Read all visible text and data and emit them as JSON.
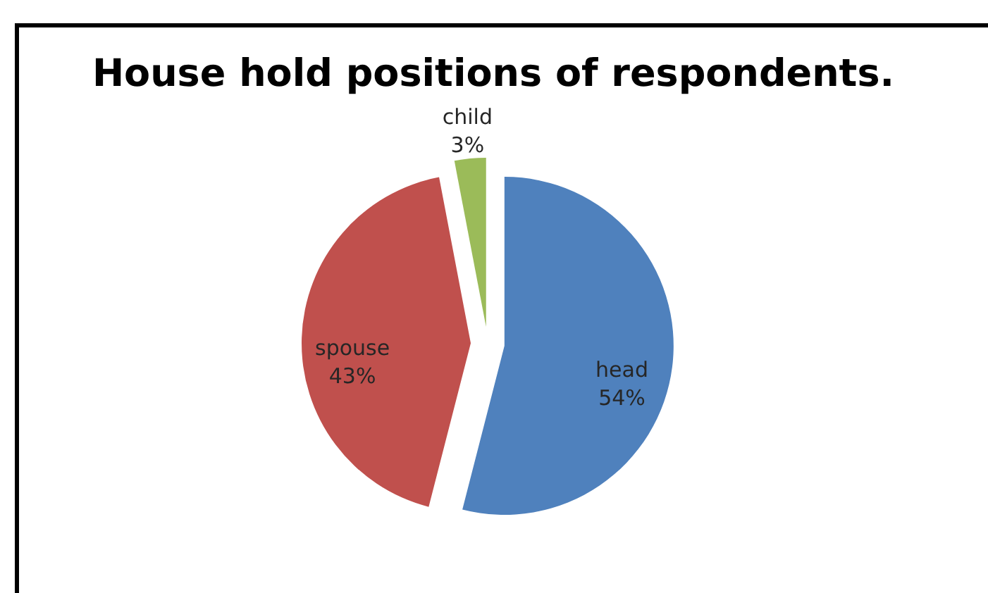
{
  "chart_data": {
    "type": "pie",
    "title": "House hold positions of respondents.",
    "categories": [
      "head",
      "spouse",
      "child"
    ],
    "values": [
      54,
      43,
      3
    ],
    "colors": [
      "#4f81bd",
      "#c0504d",
      "#9bbb59"
    ],
    "value_labels": [
      "54%",
      "43%",
      "3%"
    ]
  }
}
